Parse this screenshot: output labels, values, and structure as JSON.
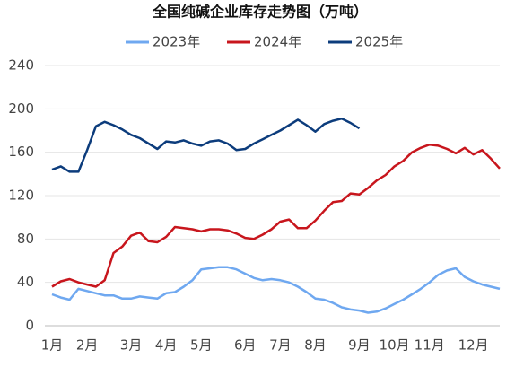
{
  "chart_data": {
    "type": "line",
    "title": "全国纯碱企业库存走势图（万吨）",
    "categories": [
      "1月",
      null,
      null,
      null,
      "2月",
      null,
      null,
      null,
      null,
      "3月",
      null,
      null,
      null,
      "4月",
      null,
      null,
      null,
      "5月",
      null,
      null,
      null,
      null,
      "6月",
      null,
      null,
      null,
      "7月",
      null,
      null,
      null,
      "8月",
      null,
      null,
      null,
      null,
      "9月",
      null,
      null,
      null,
      "10月",
      null,
      null,
      null,
      "11月",
      null,
      null,
      null,
      null,
      "12月",
      null,
      null,
      null
    ],
    "series": [
      {
        "name": "2023年",
        "color": "#6fa8f0",
        "values": [
          29,
          26,
          24,
          34,
          32,
          30,
          28,
          28,
          25,
          25,
          27,
          26,
          25,
          30,
          31,
          36,
          42,
          52,
          53,
          54,
          54,
          52,
          48,
          44,
          42,
          43,
          42,
          40,
          36,
          31,
          25,
          24,
          21,
          17,
          15,
          14,
          12,
          13,
          16,
          20,
          24,
          29,
          34,
          40,
          47,
          51,
          53,
          45,
          41,
          38,
          36,
          34
        ]
      },
      {
        "name": "2024年",
        "color": "#c8161d",
        "values": [
          36,
          41,
          43,
          40,
          38,
          36,
          42,
          67,
          73,
          83,
          86,
          78,
          77,
          82,
          91,
          90,
          89,
          87,
          89,
          89,
          88,
          85,
          81,
          80,
          84,
          89,
          96,
          98,
          90,
          90,
          97,
          106,
          114,
          115,
          122,
          121,
          127,
          134,
          139,
          147,
          152,
          160,
          164,
          167,
          166,
          163,
          159,
          164,
          158,
          162,
          154,
          145
        ]
      },
      {
        "name": "2025年",
        "color": "#0c3c7c",
        "values": [
          144,
          147,
          142,
          142,
          162,
          184,
          188,
          185,
          181,
          176,
          173,
          168,
          163,
          170,
          169,
          171,
          168,
          166,
          170,
          171,
          168,
          162,
          163,
          168,
          172,
          176,
          180,
          185,
          190,
          185,
          179,
          186,
          189,
          191,
          187,
          182,
          null,
          null,
          null,
          null,
          null,
          null,
          null,
          null,
          null,
          null,
          null,
          null,
          null,
          null,
          null,
          null
        ]
      }
    ],
    "ylim": [
      0,
      240
    ],
    "yticks": [
      0,
      40,
      80,
      120,
      160,
      200,
      240
    ],
    "grid": true,
    "legend": "top"
  }
}
